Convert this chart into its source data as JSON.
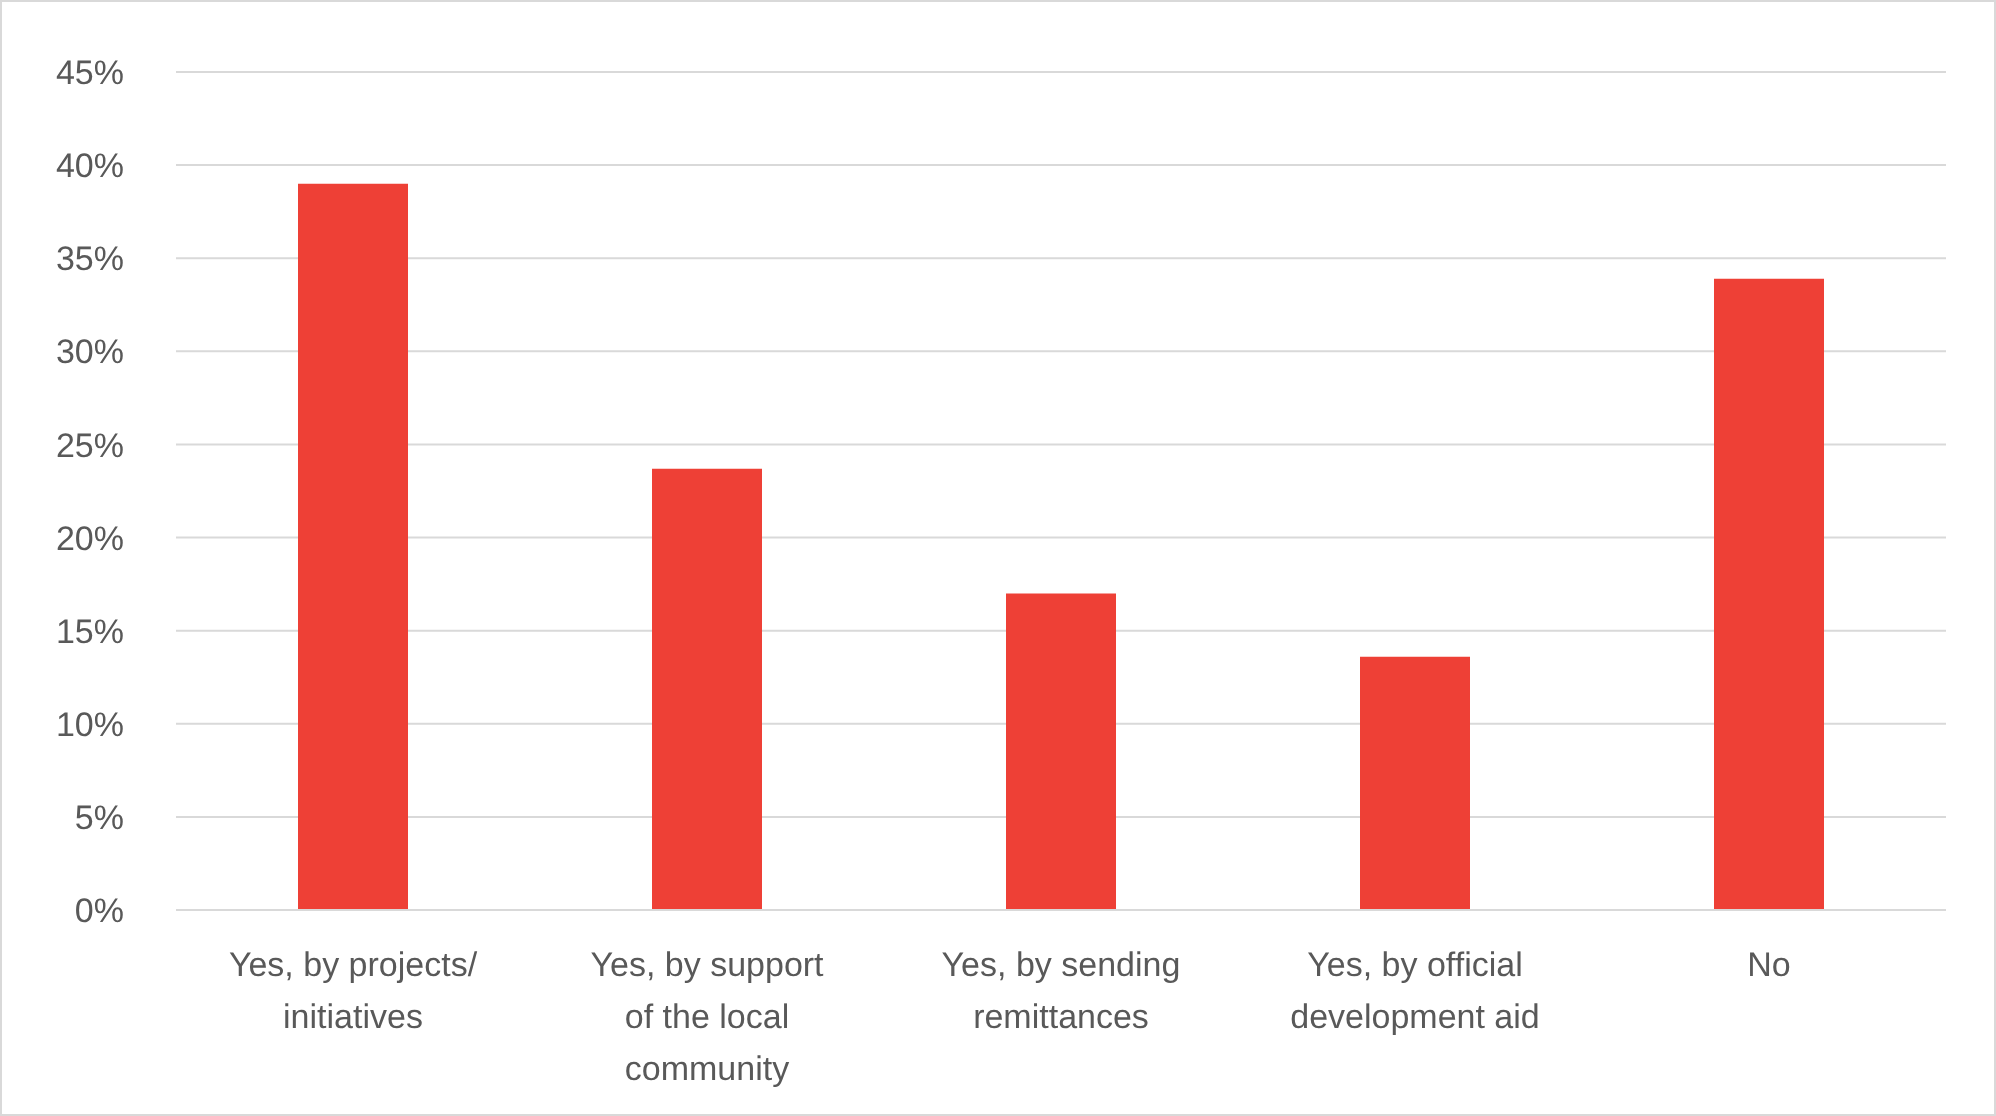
{
  "chart_data": {
    "type": "bar",
    "categories": [
      "Yes, by projects/ initiatives",
      "Yes, by support of the local community",
      "Yes, by sending remittances",
      "Yes, by official development aid",
      "No"
    ],
    "values": [
      0.39,
      0.237,
      0.17,
      0.136,
      0.339
    ],
    "color": "#ee4036",
    "ylim": [
      0,
      0.45
    ],
    "yticks": [
      {
        "value": 0,
        "label": "0%"
      },
      {
        "value": 0.05,
        "label": "5%"
      },
      {
        "value": 0.1,
        "label": "10%"
      },
      {
        "value": 0.15,
        "label": "15%"
      },
      {
        "value": 0.2,
        "label": "20%"
      },
      {
        "value": 0.25,
        "label": "25%"
      },
      {
        "value": 0.3,
        "label": "30%"
      },
      {
        "value": 0.35,
        "label": "35%"
      },
      {
        "value": 0.4,
        "label": "40%"
      },
      {
        "value": 0.45,
        "label": "45%"
      }
    ],
    "grid": "y",
    "legend": false
  }
}
